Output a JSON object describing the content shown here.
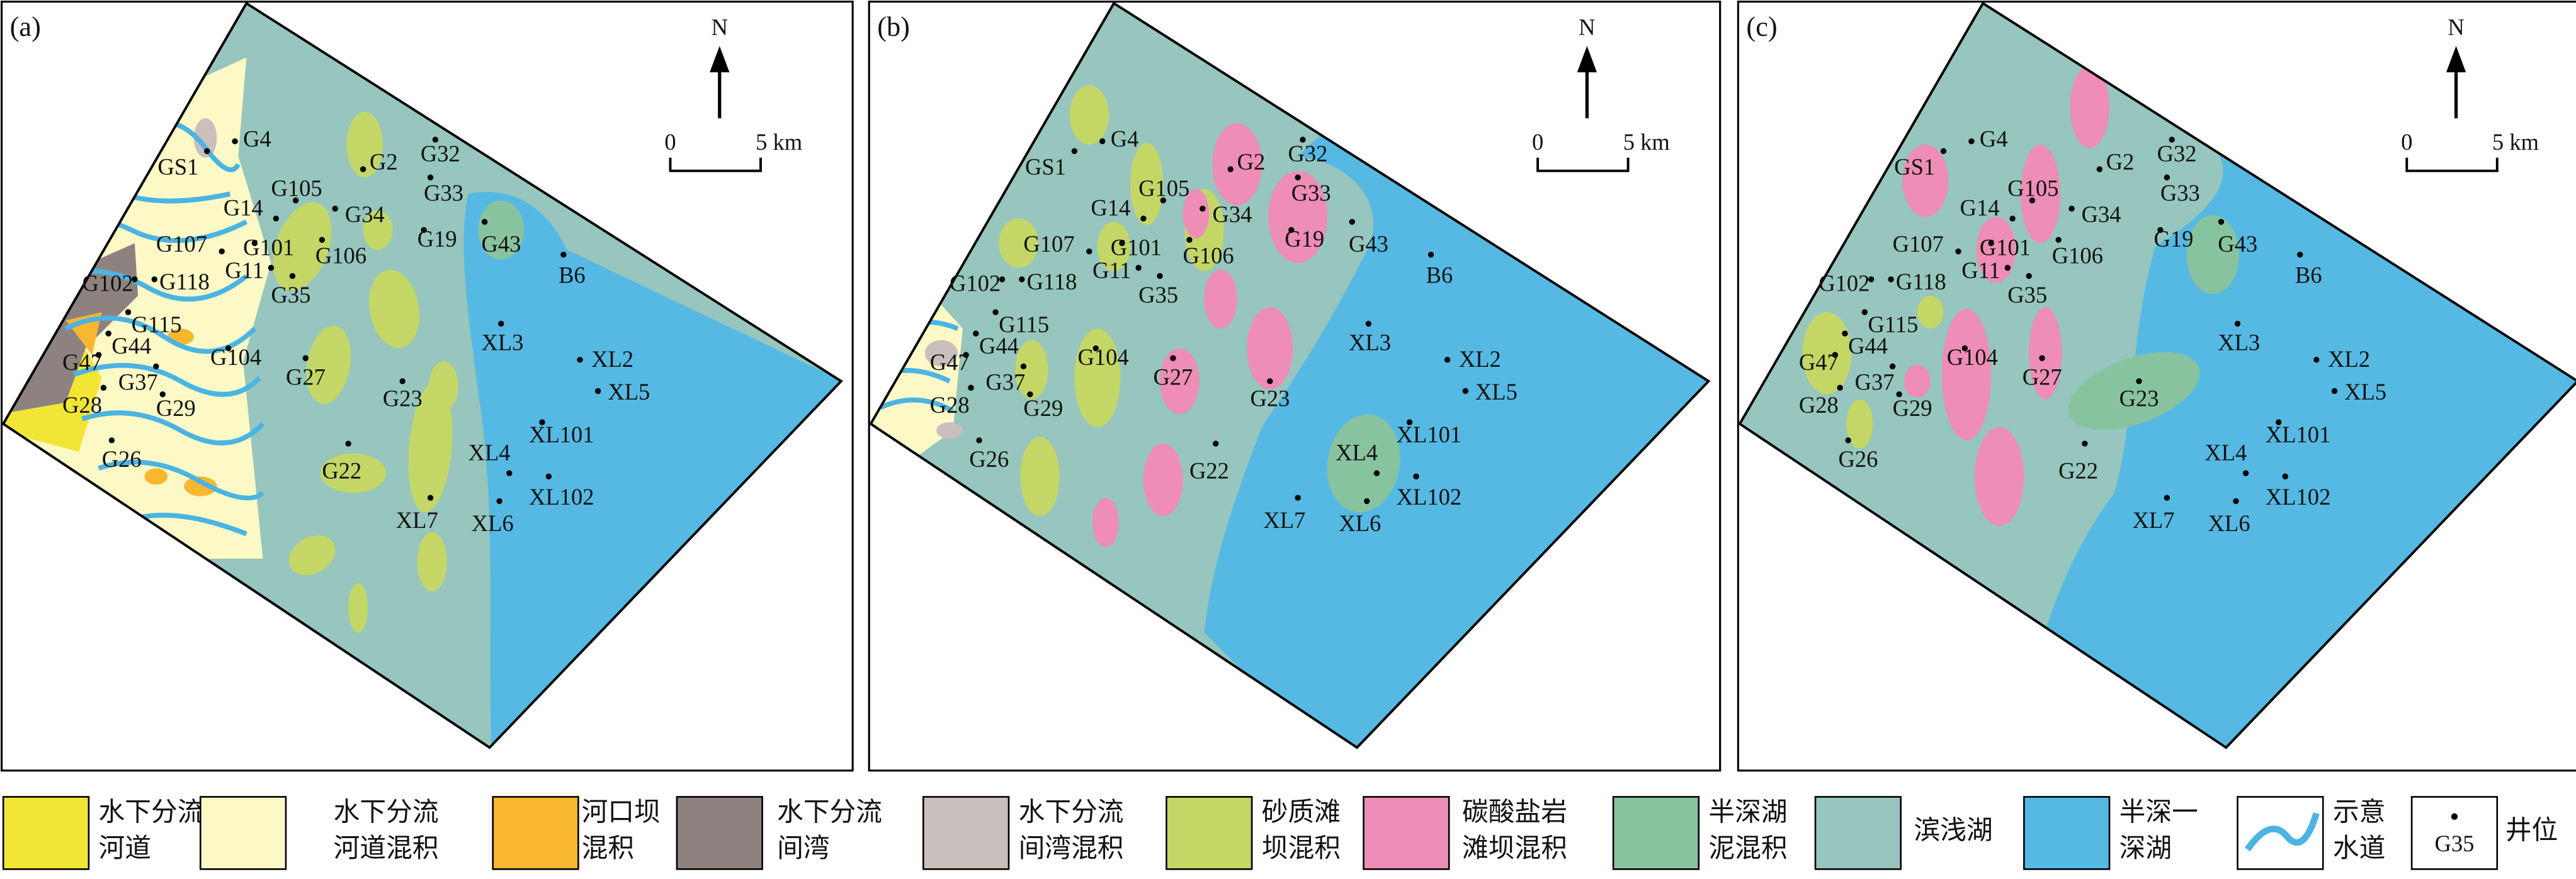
{
  "panels": [
    {
      "label": "(a)"
    },
    {
      "label": "(b)"
    },
    {
      "label": "(c)"
    }
  ],
  "compass": {
    "north": "N",
    "scale_zero": "0",
    "scale_length": "5 km"
  },
  "wells": [
    "G4",
    "GS1",
    "G2",
    "G32",
    "G33",
    "G105",
    "G14",
    "G34",
    "G19",
    "G43",
    "B6",
    "G107",
    "G101",
    "G106",
    "G11",
    "G35",
    "G102",
    "G118",
    "G115",
    "G44",
    "G47",
    "G37",
    "G28",
    "G29",
    "G26",
    "G104",
    "G27",
    "G23",
    "G22",
    "XL3",
    "XL2",
    "XL5",
    "XL101",
    "XL4",
    "XL102",
    "XL7",
    "XL6"
  ],
  "legend": [
    {
      "lines": [
        "水下分流",
        "河道"
      ],
      "color": "#f3e535"
    },
    {
      "lines": [
        "水下分流",
        "河道混积"
      ],
      "color": "#fcf9c6"
    },
    {
      "lines": [
        "河口坝",
        "混积"
      ],
      "color": "#f9b730"
    },
    {
      "lines": [
        "水下分流",
        "间湾"
      ],
      "color": "#8d8280"
    },
    {
      "lines": [
        "水下分流",
        "间湾混积"
      ],
      "color": "#c9bfbc"
    },
    {
      "lines": [
        "砂质滩",
        "坝混积"
      ],
      "color": "#c4d766"
    },
    {
      "lines": [
        "碳酸盐岩",
        "滩坝混积"
      ],
      "color": "#ee8db6"
    },
    {
      "lines": [
        "半深湖",
        "泥混积"
      ],
      "color": "#88c39f"
    },
    {
      "lines": [
        "滨浅湖"
      ],
      "color": "#96c6bd"
    },
    {
      "lines": [
        "半深一",
        "深湖"
      ],
      "color": "#55b9e3"
    },
    {
      "lines": [
        "示意",
        "水道"
      ],
      "color": "#4bb4e2"
    },
    {
      "lines": [
        "井位"
      ],
      "sample": "G35"
    }
  ]
}
